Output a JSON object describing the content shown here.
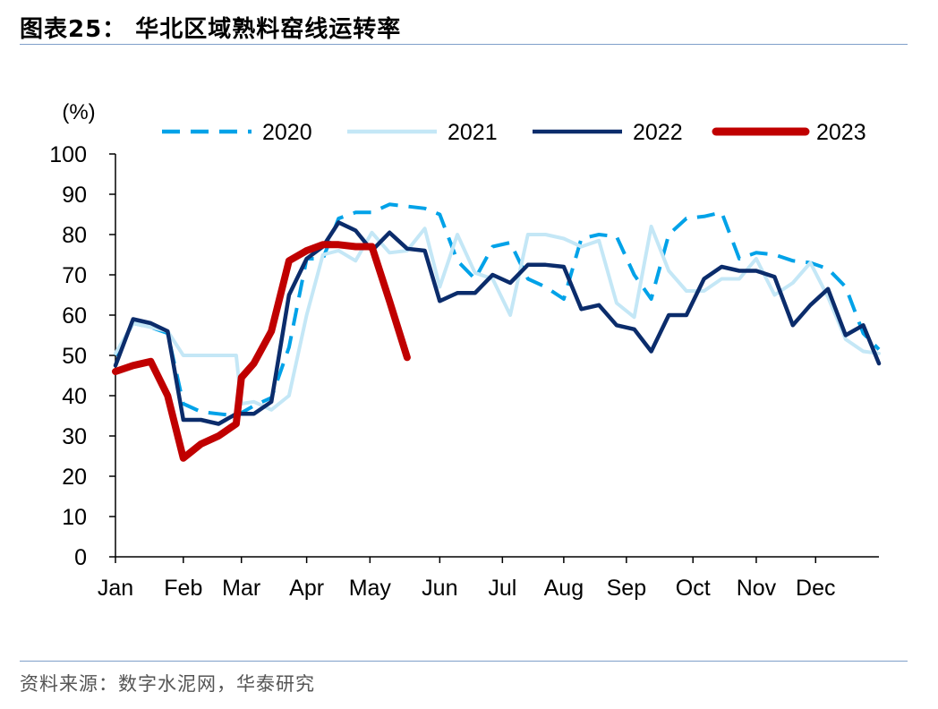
{
  "figure": {
    "title": "图表25：  华北区域熟料窑线运转率",
    "source": "资料来源：数字水泥网，华泰研究"
  },
  "chart_data": {
    "type": "line",
    "unit_label": "(%)",
    "ylim": [
      0,
      100
    ],
    "yticks": [
      0,
      10,
      20,
      30,
      40,
      50,
      60,
      70,
      80,
      90,
      100
    ],
    "x_label_weeks": [
      0,
      10.4,
      19.3,
      29.3,
      39,
      49.7,
      59.3,
      68.7,
      78.3,
      88.5,
      98.2,
      107.3
    ],
    "xlim": [
      0,
      117
    ],
    "month_labels": [
      "Jan",
      "Feb",
      "Mar",
      "Apr",
      "May",
      "Jun",
      "Jul",
      "Aug",
      "Sep",
      "Oct",
      "Nov",
      "Dec"
    ],
    "grid": false,
    "legend_position": "top",
    "series": [
      {
        "name": "2020",
        "color": "#00a2e8",
        "style": "dashed",
        "points": [
          [
            0,
            50
          ],
          [
            2.7,
            58
          ],
          [
            5.4,
            57
          ],
          [
            8,
            55.5
          ],
          [
            10.4,
            38
          ],
          [
            13.1,
            36
          ],
          [
            15.8,
            35.5
          ],
          [
            18.5,
            35
          ],
          [
            21.2,
            37.5
          ],
          [
            23.9,
            39.5
          ],
          [
            26.6,
            52
          ],
          [
            29.3,
            74
          ],
          [
            31.8,
            74
          ],
          [
            34.2,
            84
          ],
          [
            36.8,
            85.5
          ],
          [
            39.3,
            85.5
          ],
          [
            42,
            87.5
          ],
          [
            44.7,
            87
          ],
          [
            47.4,
            86.5
          ],
          [
            49.7,
            85
          ],
          [
            52.4,
            73.5
          ],
          [
            55.1,
            69
          ],
          [
            57.8,
            77
          ],
          [
            60.5,
            78
          ],
          [
            63.2,
            69
          ],
          [
            65.9,
            67
          ],
          [
            68.7,
            64
          ],
          [
            71.4,
            79
          ],
          [
            74.1,
            80
          ],
          [
            76.8,
            79.5
          ],
          [
            79.5,
            70
          ],
          [
            82.1,
            64
          ],
          [
            84.8,
            80
          ],
          [
            87.5,
            84
          ],
          [
            90.2,
            84.5
          ],
          [
            92.9,
            85.5
          ],
          [
            95.6,
            74
          ],
          [
            98.2,
            75.5
          ],
          [
            101,
            75
          ],
          [
            103.8,
            73.5
          ],
          [
            106.5,
            73
          ],
          [
            109.2,
            71.5
          ],
          [
            111.9,
            67
          ],
          [
            114.6,
            55.5
          ],
          [
            117,
            51.5
          ]
        ]
      },
      {
        "name": "2021",
        "color": "#c4e7f6",
        "style": "solid",
        "points": [
          [
            0,
            50.5
          ],
          [
            2.7,
            58
          ],
          [
            5.4,
            57
          ],
          [
            8,
            56
          ],
          [
            10.4,
            50
          ],
          [
            13.1,
            50
          ],
          [
            15.8,
            50
          ],
          [
            18.5,
            50
          ],
          [
            19.3,
            38
          ],
          [
            21.2,
            38.5
          ],
          [
            23.9,
            36.5
          ],
          [
            26.6,
            40
          ],
          [
            29.3,
            60
          ],
          [
            31.8,
            75
          ],
          [
            34.2,
            76
          ],
          [
            36.8,
            73.5
          ],
          [
            39.3,
            80.5
          ],
          [
            42,
            75.5
          ],
          [
            44.7,
            76
          ],
          [
            47.4,
            81.5
          ],
          [
            49.7,
            67
          ],
          [
            52.4,
            80
          ],
          [
            55.1,
            70.5
          ],
          [
            57.8,
            69
          ],
          [
            60.5,
            60
          ],
          [
            63.2,
            80
          ],
          [
            65.9,
            80
          ],
          [
            68.7,
            79
          ],
          [
            71.4,
            77
          ],
          [
            74.1,
            78.5
          ],
          [
            76.8,
            63
          ],
          [
            79.5,
            59.5
          ],
          [
            82.1,
            82
          ],
          [
            84.8,
            71
          ],
          [
            87.5,
            66
          ],
          [
            90.2,
            66
          ],
          [
            92.9,
            69
          ],
          [
            95.6,
            69
          ],
          [
            98.2,
            74
          ],
          [
            101,
            65
          ],
          [
            103.8,
            68
          ],
          [
            106.5,
            73
          ],
          [
            109.2,
            64.5
          ],
          [
            111.9,
            54
          ],
          [
            114.6,
            51
          ],
          [
            117,
            50.5
          ]
        ]
      },
      {
        "name": "2022",
        "color": "#0b2c6b",
        "style": "solid",
        "points": [
          [
            0,
            47.5
          ],
          [
            2.7,
            59
          ],
          [
            5.4,
            58
          ],
          [
            8,
            56
          ],
          [
            10.4,
            34
          ],
          [
            13.1,
            34
          ],
          [
            15.8,
            33
          ],
          [
            18.5,
            35.5
          ],
          [
            21.2,
            35.5
          ],
          [
            23.9,
            38.5
          ],
          [
            26.6,
            65
          ],
          [
            29.3,
            74
          ],
          [
            31.8,
            77
          ],
          [
            34.2,
            83
          ],
          [
            36.8,
            81
          ],
          [
            39.3,
            76
          ],
          [
            42,
            80.5
          ],
          [
            44.7,
            76.5
          ],
          [
            47.4,
            76
          ],
          [
            49.7,
            63.5
          ],
          [
            52.4,
            65.5
          ],
          [
            55.1,
            65.5
          ],
          [
            57.8,
            70
          ],
          [
            60.5,
            68
          ],
          [
            63.2,
            72.5
          ],
          [
            65.9,
            72.5
          ],
          [
            68.7,
            72
          ],
          [
            71.4,
            61.5
          ],
          [
            74.1,
            62.5
          ],
          [
            76.8,
            57.5
          ],
          [
            79.5,
            56.5
          ],
          [
            82.1,
            51
          ],
          [
            84.8,
            60
          ],
          [
            87.5,
            60
          ],
          [
            90.2,
            69
          ],
          [
            92.9,
            72
          ],
          [
            95.6,
            71
          ],
          [
            98.2,
            71
          ],
          [
            101,
            69.5
          ],
          [
            103.8,
            57.5
          ],
          [
            106.5,
            62.5
          ],
          [
            109.2,
            66.5
          ],
          [
            111.9,
            55
          ],
          [
            114.6,
            57.5
          ],
          [
            117,
            48
          ]
        ]
      },
      {
        "name": "2023",
        "color": "#c00000",
        "style": "solid",
        "points": [
          [
            0,
            46
          ],
          [
            2.7,
            47.5
          ],
          [
            5.4,
            48.5
          ],
          [
            8,
            40
          ],
          [
            10.4,
            24.5
          ],
          [
            13.1,
            28
          ],
          [
            15.8,
            30
          ],
          [
            18.5,
            33
          ],
          [
            19.3,
            44.5
          ],
          [
            21.2,
            48
          ],
          [
            23.9,
            56
          ],
          [
            26.6,
            73.5
          ],
          [
            29.3,
            76
          ],
          [
            31.8,
            77.5
          ],
          [
            34.2,
            77.5
          ],
          [
            36.8,
            77
          ],
          [
            39.3,
            77
          ],
          [
            42,
            63.5
          ],
          [
            44.7,
            49.5
          ]
        ]
      }
    ]
  }
}
